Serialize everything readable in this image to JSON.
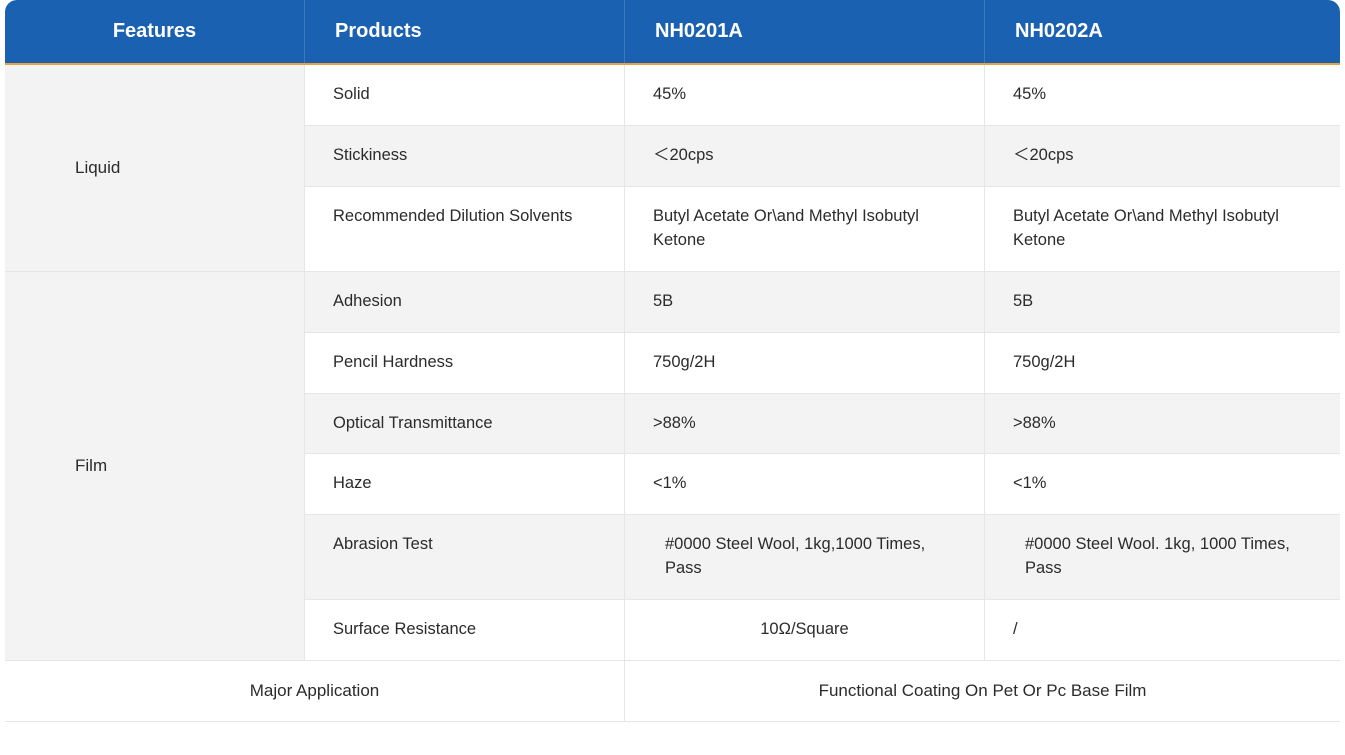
{
  "colors": {
    "header_bg": "#1b61b2",
    "header_text": "#ffffff",
    "accent_border": "#e9a13b",
    "row_bg_light": "#ffffff",
    "row_bg_grey": "#f3f3f3",
    "border": "#e6e6e6",
    "text": "#2b2b2b"
  },
  "typography": {
    "header_fontsize": 20,
    "body_fontsize": 16.5,
    "header_weight": 600
  },
  "header": {
    "features": "Features",
    "products": "Products",
    "col_a": "NH0201A",
    "col_b": "NH0202A"
  },
  "groups": [
    {
      "feature": "Liquid",
      "rows": [
        {
          "product": "Solid",
          "a": "45%",
          "b": "45%",
          "alt": true
        },
        {
          "product": "Stickiness",
          "a": "＜20cps",
          "b": "＜20cps",
          "alt": false
        },
        {
          "product": "Recommended Dilution Solvents",
          "a": "Butyl Acetate Or\\and Methyl Isobutyl Ketone",
          "b": "Butyl Acetate Or\\and Methyl Isobutyl Ketone",
          "alt": true
        }
      ]
    },
    {
      "feature": "Film",
      "rows": [
        {
          "product": "Adhesion",
          "a": "5B",
          "b": "5B",
          "alt": false
        },
        {
          "product": "Pencil Hardness",
          "a": "750g/2H",
          "b": "750g/2H",
          "alt": true
        },
        {
          "product": "Optical Transmittance",
          "a": ">88%",
          "b": ">88%",
          "alt": false
        },
        {
          "product": "Haze",
          "a": "<1%",
          "b": "<1%",
          "alt": true
        },
        {
          "product": "Abrasion Test",
          "a": "#0000 Steel Wool, 1kg,1000 Times, Pass",
          "b": "#0000 Steel Wool. 1kg, 1000 Times, Pass",
          "alt": false,
          "indent": true
        },
        {
          "product": "Surface Resistance",
          "a": "10Ω/Square",
          "b": "/",
          "alt": true,
          "a_center": true
        }
      ]
    }
  ],
  "footer": {
    "left": "Major Application",
    "right": "Functional Coating On Pet Or Pc Base Film"
  }
}
